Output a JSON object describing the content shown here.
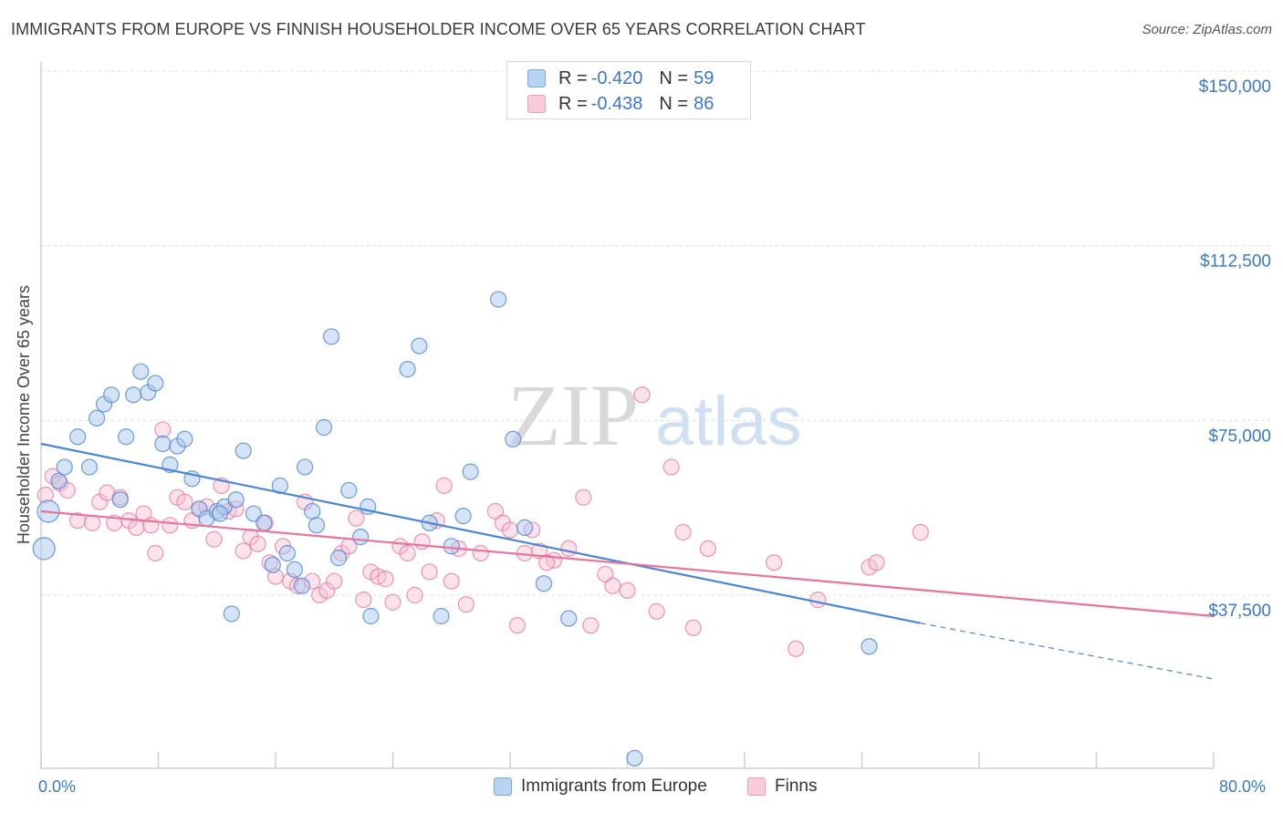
{
  "title": "IMMIGRANTS FROM EUROPE VS FINNISH HOUSEHOLDER INCOME OVER 65 YEARS CORRELATION CHART",
  "source": "Source: ZipAtlas.com",
  "watermark": {
    "zip": "ZIP",
    "atlas": "atlas"
  },
  "colors": {
    "blue": "#4a86d6",
    "blue_fill": "#a9c8ee",
    "pink": "#e8739c",
    "pink_fill": "#f6bfd2",
    "tick_label": "#3a78c9",
    "grid": "#dcdcdc"
  },
  "legend": {
    "rows": [
      {
        "r_label": "R = ",
        "r_value": "-0.420",
        "n_label": "N = ",
        "n_value": "59"
      },
      {
        "r_label": "R = ",
        "r_value": "-0.438",
        "n_label": "N = ",
        "n_value": "86"
      }
    ]
  },
  "bottom_legend": {
    "blue_label": "Immigrants from Europe",
    "pink_label": "Finns"
  },
  "x_axis": {
    "min_label": "0.0%",
    "max_label": "80.0%"
  },
  "chart_data": {
    "type": "scatter",
    "title": "IMMIGRANTS FROM EUROPE VS FINNISH HOUSEHOLDER INCOME OVER 65 YEARS CORRELATION CHART",
    "xlabel": "",
    "ylabel": "Householder Income Over 65 years",
    "xlim": [
      0,
      80
    ],
    "ylim": [
      0,
      155000
    ],
    "y_ticks": [
      37500,
      75000,
      112500,
      150000
    ],
    "y_tick_labels": [
      "$37,500",
      "$75,000",
      "$112,500",
      "$150,000"
    ],
    "x_tick_labels": [
      "0.0%",
      "80.0%"
    ],
    "grid": true,
    "legend_position": "top-center",
    "series": [
      {
        "name": "Immigrants from Europe",
        "color": "#4a86d6",
        "trend": {
          "x0": 0,
          "y0": 70000,
          "x1": 60,
          "y1": 31500,
          "dashed_to_x": 80,
          "dashed_to_y": 19500
        },
        "points": [
          [
            0.2,
            47500
          ],
          [
            0.5,
            55500
          ],
          [
            1.2,
            62000
          ],
          [
            1.6,
            65000
          ],
          [
            2.5,
            71500
          ],
          [
            3.3,
            65000
          ],
          [
            3.8,
            75500
          ],
          [
            4.3,
            78500
          ],
          [
            4.8,
            80500
          ],
          [
            5.4,
            58000
          ],
          [
            5.8,
            71500
          ],
          [
            6.3,
            80500
          ],
          [
            6.8,
            85500
          ],
          [
            7.3,
            81000
          ],
          [
            7.8,
            83000
          ],
          [
            8.3,
            70000
          ],
          [
            8.8,
            65500
          ],
          [
            9.3,
            69500
          ],
          [
            9.8,
            71000
          ],
          [
            10.3,
            62500
          ],
          [
            10.8,
            56000
          ],
          [
            11.3,
            54000
          ],
          [
            12.0,
            55500
          ],
          [
            12.5,
            56500
          ],
          [
            13.0,
            33500
          ],
          [
            13.3,
            58000
          ],
          [
            13.8,
            68500
          ],
          [
            14.5,
            55000
          ],
          [
            15.2,
            53000
          ],
          [
            15.8,
            44000
          ],
          [
            16.3,
            61000
          ],
          [
            16.8,
            46500
          ],
          [
            17.3,
            43000
          ],
          [
            17.8,
            39500
          ],
          [
            18.0,
            65000
          ],
          [
            18.5,
            55500
          ],
          [
            18.8,
            52500
          ],
          [
            19.3,
            73500
          ],
          [
            19.8,
            93000
          ],
          [
            20.3,
            45500
          ],
          [
            21.0,
            60000
          ],
          [
            21.8,
            50000
          ],
          [
            22.3,
            56500
          ],
          [
            22.5,
            33000
          ],
          [
            25.0,
            86000
          ],
          [
            25.8,
            91000
          ],
          [
            26.5,
            53000
          ],
          [
            27.3,
            33000
          ],
          [
            28.0,
            48000
          ],
          [
            28.8,
            54500
          ],
          [
            29.3,
            64000
          ],
          [
            31.2,
            101000
          ],
          [
            32.2,
            71000
          ],
          [
            33.0,
            52000
          ],
          [
            34.3,
            40000
          ],
          [
            36.0,
            32500
          ],
          [
            40.5,
            2500
          ],
          [
            56.5,
            26500
          ],
          [
            12.2,
            55000
          ]
        ]
      },
      {
        "name": "Finns",
        "color": "#e8739c",
        "trend": {
          "x0": 0,
          "y0": 55500,
          "x1": 80,
          "y1": 33000
        },
        "points": [
          [
            0.3,
            59000
          ],
          [
            0.8,
            63000
          ],
          [
            1.3,
            61500
          ],
          [
            1.8,
            60000
          ],
          [
            2.5,
            53500
          ],
          [
            3.5,
            53000
          ],
          [
            4.0,
            57500
          ],
          [
            4.5,
            59500
          ],
          [
            5.0,
            53000
          ],
          [
            5.4,
            58500
          ],
          [
            6.0,
            53500
          ],
          [
            6.5,
            52000
          ],
          [
            7.0,
            55000
          ],
          [
            7.5,
            52500
          ],
          [
            7.8,
            46500
          ],
          [
            8.3,
            73000
          ],
          [
            8.8,
            52500
          ],
          [
            9.3,
            58500
          ],
          [
            9.8,
            57500
          ],
          [
            10.3,
            53500
          ],
          [
            10.8,
            56000
          ],
          [
            11.3,
            56500
          ],
          [
            11.8,
            49500
          ],
          [
            12.3,
            61000
          ],
          [
            12.8,
            55500
          ],
          [
            13.3,
            56000
          ],
          [
            13.8,
            47000
          ],
          [
            14.3,
            50000
          ],
          [
            14.8,
            48500
          ],
          [
            15.3,
            53000
          ],
          [
            15.6,
            44500
          ],
          [
            16.0,
            41500
          ],
          [
            16.5,
            48000
          ],
          [
            17.0,
            40500
          ],
          [
            17.5,
            39500
          ],
          [
            18.0,
            57500
          ],
          [
            18.5,
            40500
          ],
          [
            19.0,
            37500
          ],
          [
            19.5,
            38500
          ],
          [
            20.0,
            40500
          ],
          [
            20.5,
            46500
          ],
          [
            21.0,
            48000
          ],
          [
            21.5,
            54000
          ],
          [
            22.0,
            36500
          ],
          [
            22.5,
            42500
          ],
          [
            23.0,
            41500
          ],
          [
            23.5,
            41000
          ],
          [
            24.0,
            36000
          ],
          [
            24.5,
            48000
          ],
          [
            25.0,
            46500
          ],
          [
            25.5,
            37500
          ],
          [
            26.0,
            49000
          ],
          [
            26.5,
            42500
          ],
          [
            27.0,
            53500
          ],
          [
            27.5,
            61000
          ],
          [
            28.0,
            40500
          ],
          [
            28.5,
            47500
          ],
          [
            29.0,
            35500
          ],
          [
            30.0,
            46500
          ],
          [
            31.0,
            55500
          ],
          [
            31.5,
            53000
          ],
          [
            32.0,
            51500
          ],
          [
            32.5,
            31000
          ],
          [
            33.0,
            46500
          ],
          [
            33.5,
            51500
          ],
          [
            34.0,
            47000
          ],
          [
            35.0,
            45000
          ],
          [
            36.0,
            47500
          ],
          [
            37.0,
            58500
          ],
          [
            37.5,
            31000
          ],
          [
            38.5,
            42000
          ],
          [
            39.0,
            39500
          ],
          [
            40.0,
            38500
          ],
          [
            41.0,
            80500
          ],
          [
            42.0,
            34000
          ],
          [
            43.0,
            65000
          ],
          [
            43.8,
            51000
          ],
          [
            44.5,
            30500
          ],
          [
            45.5,
            47500
          ],
          [
            50.0,
            44500
          ],
          [
            51.5,
            26000
          ],
          [
            53.0,
            36500
          ],
          [
            56.5,
            43500
          ],
          [
            57.0,
            44500
          ],
          [
            60.0,
            51000
          ],
          [
            34.5,
            44500
          ]
        ]
      }
    ]
  }
}
